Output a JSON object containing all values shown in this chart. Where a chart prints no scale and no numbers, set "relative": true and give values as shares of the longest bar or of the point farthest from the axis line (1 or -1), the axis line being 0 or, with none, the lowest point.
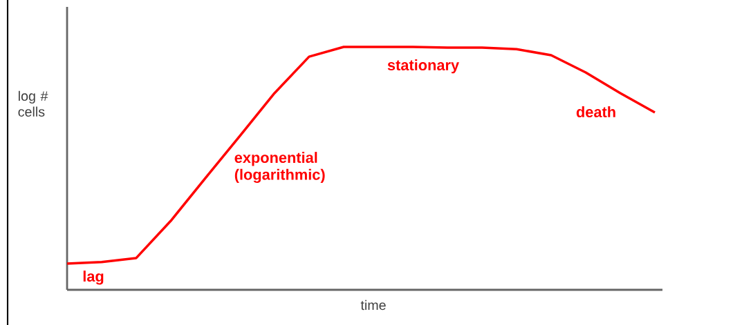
{
  "chart_data": {
    "type": "line",
    "relative": true,
    "xlabel": "time",
    "ylabel": "log # cells",
    "categories": [
      null,
      null,
      null,
      null,
      null,
      null,
      null,
      null,
      null,
      null,
      null,
      null,
      null,
      null,
      null,
      null,
      null,
      null
    ],
    "series": [
      {
        "color": "#ff0000",
        "values": [
          0.108,
          0.114,
          0.131,
          0.284,
          0.46,
          0.634,
          0.81,
          0.96,
          1,
          1,
          1,
          0.997,
          0.997,
          0.991,
          0.966,
          0.895,
          0.81,
          0.73
        ]
      }
    ],
    "annotations": [
      "lag",
      "exponential (logarithmic)",
      "stationary",
      "death"
    ]
  }
}
